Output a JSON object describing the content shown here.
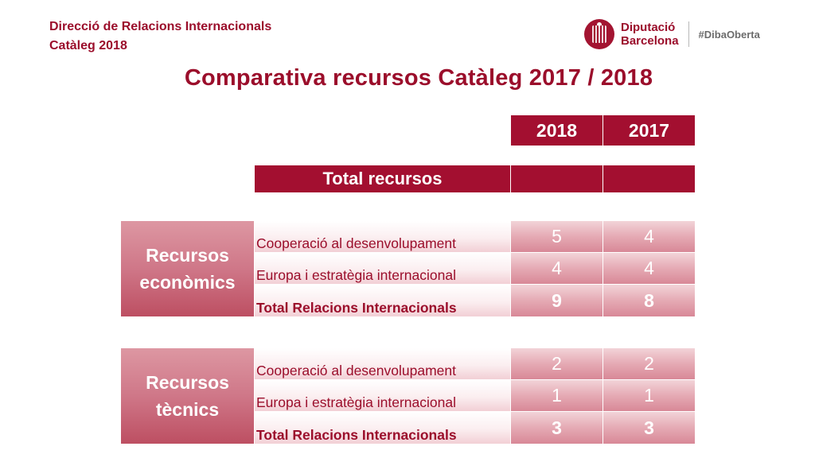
{
  "header": {
    "line1": "Direcció de Relacions Internacionals",
    "line2": "Catàleg 2018"
  },
  "logo": {
    "name_line1": "Diputació",
    "name_line2": "Barcelona",
    "hashtag": "#DibaOberta"
  },
  "title": "Comparativa recursos Catàleg 2017 / 2018",
  "table": {
    "years": [
      "2018",
      "2017"
    ],
    "total_label": "Total recursos",
    "sections": [
      {
        "name_line1": "Recursos",
        "name_line2": "econòmics",
        "rows": [
          {
            "label": "Cooperació al desenvolupament",
            "v2018": "5",
            "v2017": "4"
          },
          {
            "label": "Europa i estratègia internacional",
            "v2018": "4",
            "v2017": "4"
          },
          {
            "label": "Total Relacions Internacionals",
            "v2018": "9",
            "v2017": "8"
          }
        ]
      },
      {
        "name_line1": "Recursos",
        "name_line2": "tècnics",
        "rows": [
          {
            "label": "Cooperació al desenvolupament",
            "v2018": "2",
            "v2017": "2"
          },
          {
            "label": "Europa i estratègia internacional",
            "v2018": "1",
            "v2017": "1"
          },
          {
            "label": "Total Relacions Internacionals",
            "v2018": "3",
            "v2017": "3"
          }
        ]
      }
    ]
  }
}
